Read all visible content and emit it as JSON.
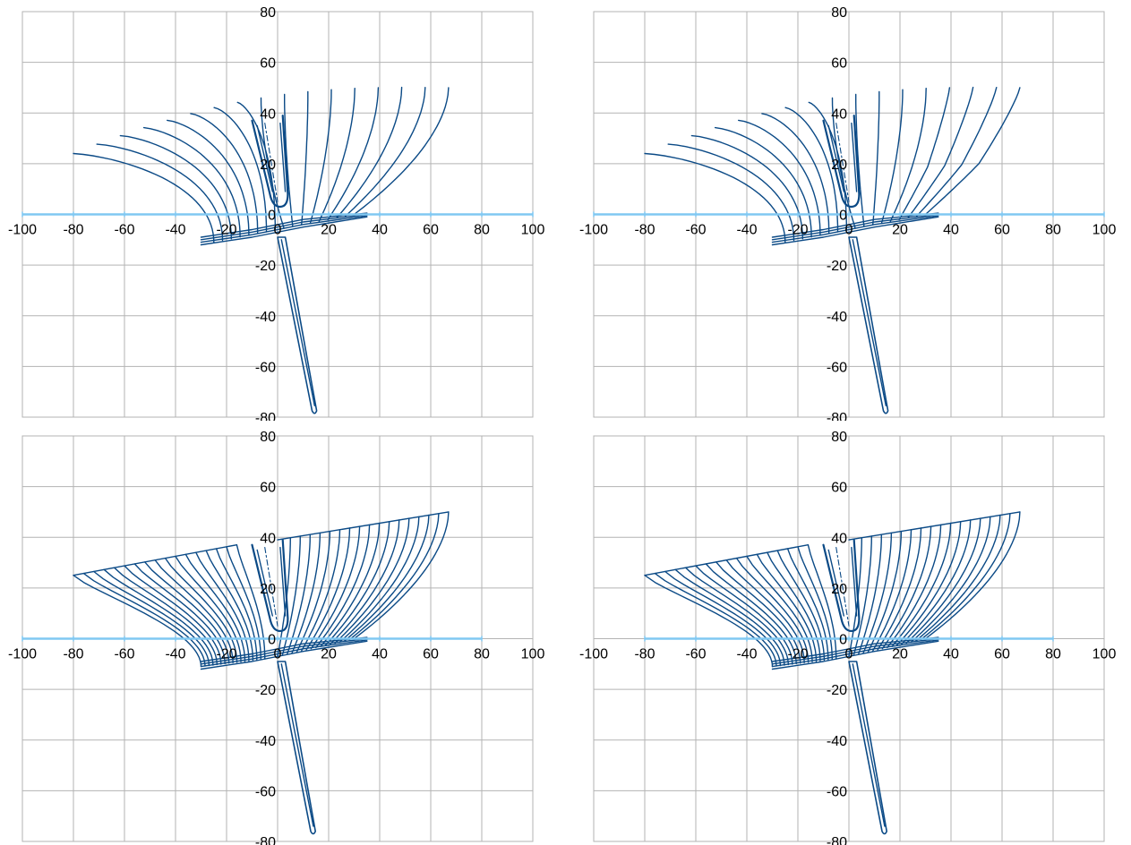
{
  "colors": {
    "grid": "#b3b3b3",
    "axis": "#80c8f2",
    "station_line": "#0b4a86",
    "centerline": "#0b4a86",
    "plot_border": "#b3b3b3",
    "background": "#ffffff"
  },
  "chart_data": [
    {
      "type": "line",
      "title": "",
      "xlabel": "",
      "ylabel": "",
      "xlim": [
        -100,
        100
      ],
      "ylim": [
        -80,
        80
      ],
      "grid": true,
      "x_ticks": [
        "-100",
        "-80",
        "-60",
        "-40",
        "-20",
        "0",
        "20",
        "40",
        "60",
        "80",
        "100"
      ],
      "y_ticks": [
        "80",
        "60",
        "40",
        "20",
        "0",
        "-20",
        "-40",
        "-60",
        "-80"
      ],
      "hull_variant": "sheer_unbounded",
      "chine_variant": "smooth",
      "deck_line": false,
      "x_axis_span": [
        -100,
        100
      ],
      "stations": 17,
      "keel_tip": [
        14.5,
        -78.5
      ]
    },
    {
      "type": "line",
      "title": "",
      "xlabel": "",
      "ylabel": "",
      "xlim": [
        -100,
        100
      ],
      "ylim": [
        -80,
        80
      ],
      "grid": true,
      "x_ticks": [
        "-100",
        "-80",
        "-60",
        "-40",
        "-20",
        "0",
        "20",
        "40",
        "60",
        "80",
        "100"
      ],
      "y_ticks": [
        "80",
        "60",
        "40",
        "20",
        "0",
        "-20",
        "-40",
        "-60",
        "-80"
      ],
      "hull_variant": "sheer_unbounded",
      "chine_variant": "kinked",
      "deck_line": false,
      "x_axis_span": [
        -100,
        100
      ],
      "stations": 17,
      "keel_tip": [
        14.5,
        -78.5
      ]
    },
    {
      "type": "line",
      "title": "",
      "xlabel": "",
      "ylabel": "",
      "xlim": [
        -100,
        100
      ],
      "ylim": [
        -80,
        80
      ],
      "grid": true,
      "x_ticks": [
        "-100",
        "-80",
        "-60",
        "-40",
        "-20",
        "0",
        "20",
        "40",
        "60",
        "80",
        "100"
      ],
      "y_ticks": [
        "80",
        "60",
        "40",
        "20",
        "0",
        "-20",
        "-40",
        "-60",
        "-80"
      ],
      "hull_variant": "deck_bounded",
      "chine_variant": "smooth",
      "deck_line": true,
      "x_axis_span": [
        -100,
        80
      ],
      "stations": 17,
      "keel_tip": [
        14,
        -77
      ]
    },
    {
      "type": "line",
      "title": "",
      "xlabel": "",
      "ylabel": "",
      "xlim": [
        -100,
        100
      ],
      "ylim": [
        -80,
        80
      ],
      "grid": true,
      "x_ticks": [
        "-100",
        "-80",
        "-60",
        "-40",
        "-20",
        "0",
        "20",
        "40",
        "60",
        "80",
        "100"
      ],
      "y_ticks": [
        "80",
        "60",
        "40",
        "20",
        "0",
        "-20",
        "-40",
        "-60",
        "-80"
      ],
      "hull_variant": "deck_bounded",
      "chine_variant": "smooth",
      "deck_line": true,
      "x_axis_span": [
        -80,
        80
      ],
      "stations": 17,
      "keel_tip": [
        14,
        -77
      ]
    }
  ]
}
